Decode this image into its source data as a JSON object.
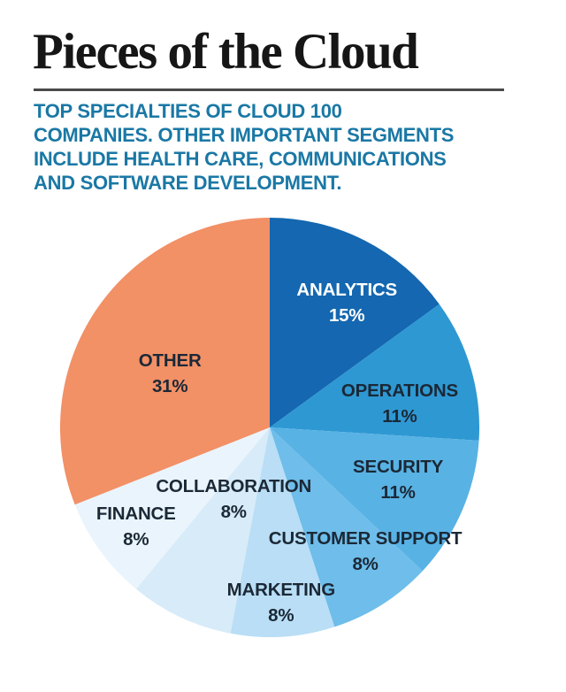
{
  "header": {
    "title": "Pieces of the Cloud",
    "title_color": "#161616",
    "rule_color": "#4a4a4a",
    "subtitle_color": "#1a78a5",
    "subtitle_lines": [
      "TOP SPECIALTIES OF CLOUD 100",
      "COMPANIES. OTHER IMPORTANT SEGMENTS",
      "INCLUDE HEALTH CARE, COMMUNICATIONS",
      "AND SOFTWARE DEVELOPMENT."
    ]
  },
  "chart_data": {
    "type": "pie",
    "title": "Pieces of the Cloud",
    "start_angle_deg": 0,
    "direction": "clockwise",
    "units": "%",
    "total": 100,
    "legend_position": "labels-on-slices",
    "series": [
      {
        "label": "ANALYTICS",
        "value": 15,
        "color": "#1467b0",
        "text_color": "#ffffff",
        "label_pos": [
          68.4,
          20.3
        ]
      },
      {
        "label": "OPERATIONS",
        "value": 11,
        "color": "#2e98d3",
        "text_color": "#1b2836",
        "label_pos": [
          81.0,
          44.3
        ]
      },
      {
        "label": "SECURITY",
        "value": 11,
        "color": "#58b2e4",
        "text_color": "#1b2836",
        "label_pos": [
          80.6,
          62.5
        ]
      },
      {
        "label": "CUSTOMER SUPPORT",
        "value": 8,
        "color": "#6ebdea",
        "text_color": "#1b2836",
        "label_pos": [
          72.8,
          79.5
        ]
      },
      {
        "label": "MARKETING",
        "value": 8,
        "color": "#b9def5",
        "text_color": "#1b2836",
        "label_pos": [
          52.7,
          91.8
        ]
      },
      {
        "label": "COLLABORATION",
        "value": 8,
        "color": "#d7ebf9",
        "text_color": "#1b2836",
        "label_pos": [
          41.4,
          67.0
        ]
      },
      {
        "label": "FINANCE",
        "value": 8,
        "color": "#eaf4fc",
        "text_color": "#1b2836",
        "label_pos": [
          18.1,
          73.6
        ]
      },
      {
        "label": "OTHER",
        "value": 31,
        "color": "#f29066",
        "text_color": "#1b2836",
        "label_pos": [
          26.2,
          37.2
        ]
      }
    ]
  }
}
